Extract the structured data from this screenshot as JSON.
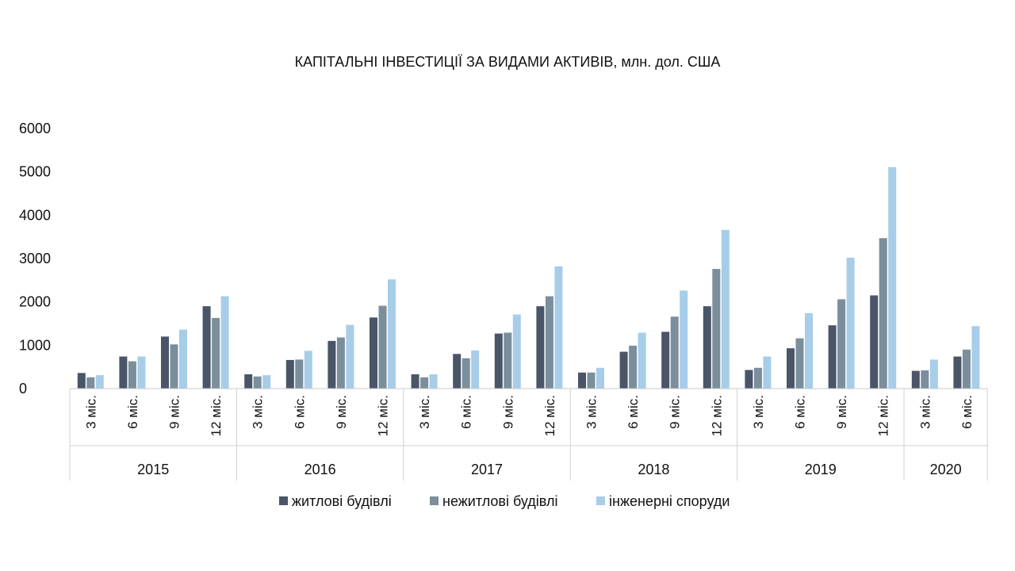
{
  "chart_data": {
    "type": "bar",
    "title": "КАПІТАЛЬНІ ІНВЕСТИЦІЇ ЗА ВИДАМИ АКТИВІВ, млн. дол. США",
    "xlabel": "",
    "ylabel": "",
    "ylim": [
      0,
      6000
    ],
    "yticks": [
      0,
      1000,
      2000,
      3000,
      4000,
      5000,
      6000
    ],
    "grid": false,
    "legend_position": "bottom",
    "groups": [
      {
        "year": "2015",
        "periods": [
          "3 міс.",
          "6 міс.",
          "9 міс.",
          "12 міс."
        ]
      },
      {
        "year": "2016",
        "periods": [
          "3 міс.",
          "6 міс.",
          "9 міс.",
          "12 міс."
        ]
      },
      {
        "year": "2017",
        "periods": [
          "3 міс.",
          "6 міс.",
          "9 міс.",
          "12 міс."
        ]
      },
      {
        "year": "2018",
        "periods": [
          "3 міс.",
          "6 міс.",
          "9 міс.",
          "12 міс."
        ]
      },
      {
        "year": "2019",
        "periods": [
          "3 міс.",
          "6 міс.",
          "9 міс.",
          "12 міс."
        ]
      },
      {
        "year": "2020",
        "periods": [
          "3 міс.",
          "6 міс."
        ]
      }
    ],
    "series": [
      {
        "name": "житлові будівлі",
        "color": "#4a5568",
        "values": [
          360,
          740,
          1200,
          1900,
          330,
          660,
          1100,
          1640,
          330,
          800,
          1270,
          1900,
          370,
          850,
          1310,
          1900,
          430,
          930,
          1460,
          2150,
          410,
          740
        ]
      },
      {
        "name": "нежитлові будівлі",
        "color": "#7b8e9c",
        "values": [
          260,
          630,
          1020,
          1630,
          280,
          670,
          1180,
          1910,
          260,
          700,
          1290,
          2130,
          370,
          990,
          1660,
          2760,
          480,
          1160,
          2060,
          3470,
          420,
          900
        ]
      },
      {
        "name": "інженерні споруди",
        "color": "#a7cde8",
        "values": [
          310,
          740,
          1360,
          2130,
          310,
          870,
          1470,
          2520,
          330,
          880,
          1710,
          2820,
          480,
          1290,
          2260,
          3660,
          740,
          1740,
          3020,
          5110,
          670,
          1440
        ]
      }
    ]
  }
}
